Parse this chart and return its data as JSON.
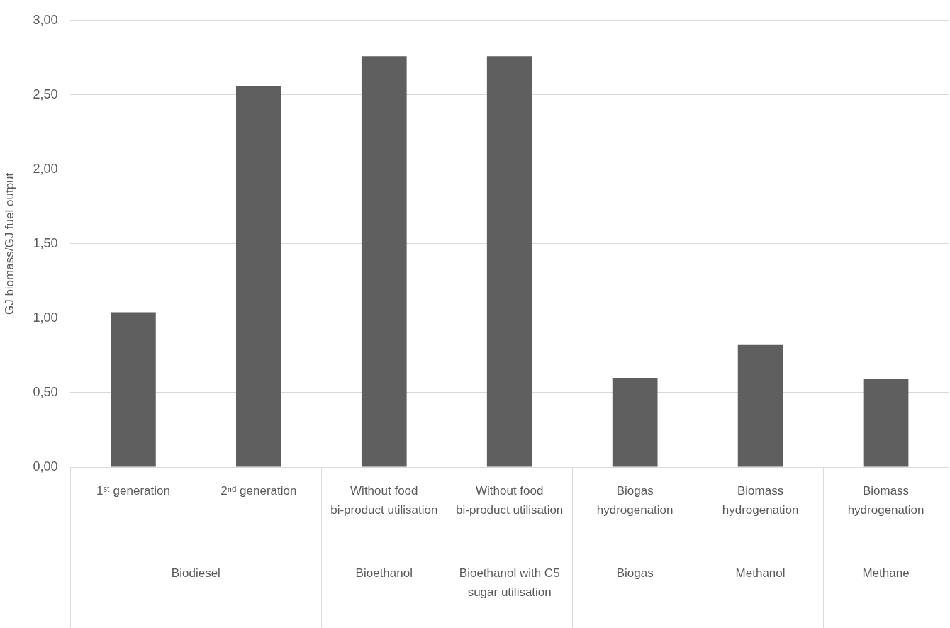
{
  "chart_data": {
    "type": "bar",
    "ylabel": "GJ biomass/GJ fuel output",
    "categories": [
      "1ˢᵗ generation",
      "2ⁿᵈ generation",
      "Without food bi-product utilisation",
      "Without food bi-product utilisation",
      "Biogas hydrogenation",
      "Biomass hydrogenation",
      "Biomass hydrogenation"
    ],
    "values": [
      1.04,
      2.56,
      2.76,
      2.76,
      0.6,
      0.82,
      0.59
    ],
    "color": "#5f5f5f",
    "ylim": [
      0,
      3
    ],
    "yticks": [
      {
        "value": 0,
        "label": "0,00"
      },
      {
        "value": 0.5,
        "label": "0,50"
      },
      {
        "value": 1,
        "label": "1,00"
      },
      {
        "value": 1.5,
        "label": "1,50"
      },
      {
        "value": 2,
        "label": "2,00"
      },
      {
        "value": 2.5,
        "label": "2,50"
      },
      {
        "value": 3,
        "label": "3,00"
      }
    ],
    "grid": "y",
    "annotations": [
      "Biodiesel",
      "Bioethanol",
      "Bioethanol with C5 sugar utilisation",
      "Biogas",
      "Methanol",
      "Methane"
    ]
  }
}
